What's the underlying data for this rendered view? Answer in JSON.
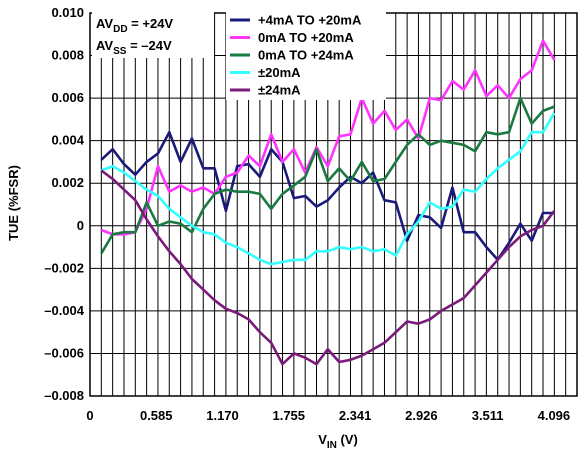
{
  "chart_data": {
    "type": "line",
    "xlabel": "V",
    "xlabel_sub": "IN",
    "xlabel_unit": " (V)",
    "ylabel": "TUE (%FSR)",
    "xlim": [
      0,
      4.3
    ],
    "ylim": [
      -0.008,
      0.01
    ],
    "x_ticks": [
      0,
      0.585,
      1.17,
      1.755,
      2.341,
      2.926,
      3.511,
      4.096
    ],
    "x_tick_labels": [
      "0",
      "0.585",
      "1.170",
      "1.755",
      "2.341",
      "2.926",
      "3.511",
      "4.096"
    ],
    "y_ticks": [
      -0.008,
      -0.006,
      -0.004,
      -0.002,
      0,
      0.002,
      0.004,
      0.006,
      0.008,
      0.01
    ],
    "y_tick_labels": [
      "–0.008",
      "–0.006",
      "–0.004",
      "–0.002",
      "0",
      "0.002",
      "0.004",
      "0.006",
      "0.008",
      "0.010"
    ],
    "grid": "vertical lines every 0.1 V, horizontal lines every 0.002",
    "legend_position": "top-right",
    "supply_labels": [
      {
        "main": "AV",
        "sub": "DD",
        "value": " = +24V"
      },
      {
        "main": "AV",
        "sub": "SS",
        "value": " = –24V"
      }
    ],
    "series": [
      {
        "name": "+4mA TO +20mA",
        "color": "#1a1a7a",
        "x": [
          0.1,
          0.2,
          0.3,
          0.4,
          0.5,
          0.6,
          0.7,
          0.8,
          0.9,
          1.0,
          1.1,
          1.2,
          1.3,
          1.4,
          1.5,
          1.6,
          1.7,
          1.8,
          1.9,
          2.0,
          2.1,
          2.2,
          2.3,
          2.4,
          2.5,
          2.6,
          2.7,
          2.8,
          2.9,
          3.0,
          3.1,
          3.2,
          3.3,
          3.4,
          3.5,
          3.6,
          3.7,
          3.8,
          3.9,
          4.0,
          4.1
        ],
        "values": [
          0.0031,
          0.0036,
          0.0029,
          0.0024,
          0.003,
          0.0034,
          0.0044,
          0.003,
          0.0041,
          0.0027,
          0.0027,
          0.0007,
          0.0028,
          0.0029,
          0.0023,
          0.0036,
          0.003,
          0.0013,
          0.0014,
          0.0009,
          0.0012,
          0.0018,
          0.0023,
          0.002,
          0.0025,
          0.0012,
          0.0011,
          -0.0007,
          0.0005,
          0.0004,
          -0.0001,
          0.0018,
          -0.0003,
          -0.0003,
          -0.001,
          -0.0016,
          -0.0008,
          0.0001,
          -0.0007,
          0.0006,
          0.0006
        ]
      },
      {
        "name": "0mA TO +20mA",
        "color": "#ff33ff",
        "x": [
          0.1,
          0.2,
          0.3,
          0.4,
          0.5,
          0.6,
          0.7,
          0.8,
          0.9,
          1.0,
          1.1,
          1.2,
          1.3,
          1.4,
          1.5,
          1.6,
          1.7,
          1.8,
          1.9,
          2.0,
          2.1,
          2.2,
          2.3,
          2.4,
          2.5,
          2.6,
          2.7,
          2.8,
          2.9,
          3.0,
          3.1,
          3.2,
          3.3,
          3.4,
          3.5,
          3.6,
          3.7,
          3.8,
          3.9,
          4.0,
          4.1
        ],
        "values": [
          -0.0002,
          -0.0004,
          -0.0004,
          -0.0003,
          0.0008,
          0.0028,
          0.0016,
          0.0019,
          0.0016,
          0.0018,
          0.0015,
          0.0023,
          0.0025,
          0.0033,
          0.0028,
          0.0043,
          0.003,
          0.0036,
          0.0025,
          0.0037,
          0.0028,
          0.0042,
          0.0043,
          0.006,
          0.0048,
          0.0054,
          0.0045,
          0.005,
          0.0041,
          0.006,
          0.0059,
          0.0068,
          0.0064,
          0.0073,
          0.0061,
          0.0066,
          0.006,
          0.0069,
          0.0073,
          0.0087,
          0.0078
        ]
      },
      {
        "name": "0mA TO +24mA",
        "color": "#1a7a40",
        "x": [
          0.1,
          0.2,
          0.3,
          0.4,
          0.5,
          0.6,
          0.7,
          0.8,
          0.9,
          1.0,
          1.1,
          1.2,
          1.3,
          1.4,
          1.5,
          1.6,
          1.7,
          1.8,
          1.9,
          2.0,
          2.1,
          2.2,
          2.3,
          2.4,
          2.5,
          2.6,
          2.7,
          2.8,
          2.9,
          3.0,
          3.1,
          3.2,
          3.3,
          3.4,
          3.5,
          3.6,
          3.7,
          3.8,
          3.9,
          4.0,
          4.1
        ],
        "values": [
          -0.0013,
          -0.0004,
          -0.0003,
          -0.0003,
          0.0011,
          0.0,
          0.0002,
          0.0001,
          -0.0003,
          0.0008,
          0.0015,
          0.0017,
          0.0016,
          0.0016,
          0.0015,
          0.0008,
          0.0015,
          0.0019,
          0.0023,
          0.0036,
          0.0021,
          0.0027,
          0.0021,
          0.003,
          0.0021,
          0.0022,
          0.003,
          0.0038,
          0.0043,
          0.0038,
          0.004,
          0.0039,
          0.0038,
          0.0035,
          0.0044,
          0.0043,
          0.0044,
          0.006,
          0.0048,
          0.0054,
          0.0056
        ]
      },
      {
        "name": "±20mA",
        "color": "#33ffff",
        "x": [
          0.1,
          0.2,
          0.3,
          0.4,
          0.5,
          0.6,
          0.7,
          0.8,
          0.9,
          1.0,
          1.1,
          1.2,
          1.3,
          1.4,
          1.5,
          1.6,
          1.7,
          1.8,
          1.9,
          2.0,
          2.1,
          2.2,
          2.3,
          2.4,
          2.5,
          2.6,
          2.7,
          2.8,
          2.9,
          3.0,
          3.1,
          3.2,
          3.3,
          3.4,
          3.5,
          3.6,
          3.7,
          3.8,
          3.9,
          4.0,
          4.1
        ],
        "values": [
          0.0026,
          0.0028,
          0.0025,
          0.0021,
          0.0017,
          0.0014,
          0.0008,
          0.0004,
          0.0,
          -0.0003,
          -0.0004,
          -0.0008,
          -0.001,
          -0.0013,
          -0.0016,
          -0.0018,
          -0.0017,
          -0.0016,
          -0.0016,
          -0.0012,
          -0.0012,
          -0.001,
          -0.0011,
          -0.001,
          -0.0012,
          -0.0011,
          -0.0014,
          -0.0004,
          0.0002,
          0.0011,
          0.0008,
          0.0009,
          0.0017,
          0.0016,
          0.0022,
          0.0027,
          0.0031,
          0.0035,
          0.0044,
          0.0044,
          0.0053
        ]
      },
      {
        "name": "±24mA",
        "color": "#7a1a7a",
        "x": [
          0.1,
          0.2,
          0.3,
          0.4,
          0.5,
          0.6,
          0.7,
          0.8,
          0.9,
          1.0,
          1.1,
          1.2,
          1.3,
          1.4,
          1.5,
          1.6,
          1.7,
          1.8,
          1.9,
          2.0,
          2.1,
          2.2,
          2.3,
          2.4,
          2.5,
          2.6,
          2.7,
          2.8,
          2.9,
          3.0,
          3.1,
          3.2,
          3.3,
          3.4,
          3.5,
          3.6,
          3.7,
          3.8,
          3.9,
          4.0,
          4.1
        ],
        "values": [
          0.0026,
          0.0022,
          0.0017,
          0.0012,
          0.0003,
          -0.0005,
          -0.0012,
          -0.0018,
          -0.0025,
          -0.003,
          -0.0035,
          -0.0039,
          -0.0041,
          -0.0044,
          -0.005,
          -0.0055,
          -0.0065,
          -0.006,
          -0.0062,
          -0.0065,
          -0.0058,
          -0.0064,
          -0.0063,
          -0.0061,
          -0.0058,
          -0.0055,
          -0.005,
          -0.0045,
          -0.0046,
          -0.0044,
          -0.004,
          -0.0037,
          -0.0034,
          -0.0028,
          -0.0022,
          -0.0016,
          -0.001,
          -0.0005,
          -0.0002,
          0.0,
          0.0007
        ]
      }
    ]
  }
}
